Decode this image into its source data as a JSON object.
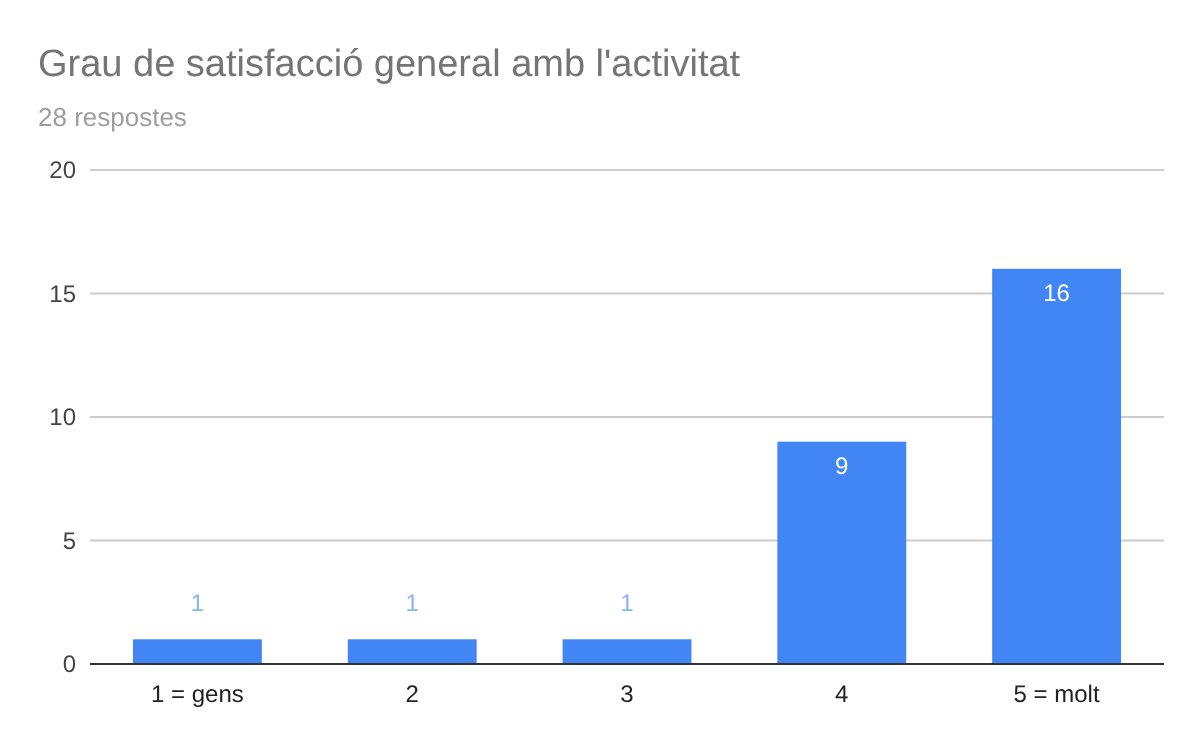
{
  "chart_data": {
    "type": "bar",
    "title": "Grau de satisfacció general amb l'activitat",
    "subtitle": "28 respostes",
    "categories": [
      "1 = gens",
      "2",
      "3",
      "4",
      "5 = molt"
    ],
    "values": [
      1,
      1,
      1,
      9,
      16
    ],
    "color": "#4285f4",
    "ylim": [
      0,
      20
    ],
    "yticks": [
      0,
      5,
      10,
      15,
      20
    ],
    "grid": "y",
    "data_labels": true
  }
}
